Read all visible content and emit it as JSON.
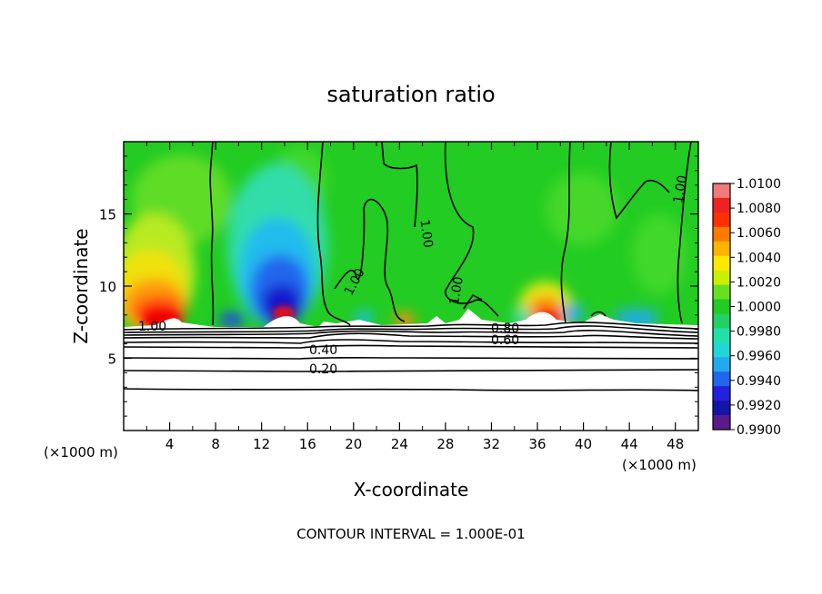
{
  "chart_data": {
    "type": "heatmap",
    "title": "saturation ratio",
    "xlabel": "X-coordinate",
    "ylabel": "Z-coordinate",
    "x_unit_left": "(×1000 m)",
    "x_unit_right": "(×1000 m)",
    "xlim": [
      0,
      50
    ],
    "ylim": [
      0,
      20
    ],
    "x_ticks": [
      4,
      8,
      12,
      16,
      20,
      24,
      28,
      32,
      36,
      40,
      44,
      48
    ],
    "y_ticks": [
      5,
      10,
      15
    ],
    "colorbar": {
      "min": 0.99,
      "max": 1.01,
      "tick_labels": [
        "1.0100",
        "1.0080",
        "1.0060",
        "1.0040",
        "1.0020",
        "1.0000",
        "0.9980",
        "0.9960",
        "0.9940",
        "0.9920",
        "0.9900"
      ]
    },
    "contour_labels": [
      {
        "text": "1.00",
        "x": 2.8,
        "z": 7.3
      },
      {
        "text": "1.00",
        "x": 20.2,
        "z": 10.5
      },
      {
        "text": "1.00",
        "x": 26.3,
        "z": 14.2
      },
      {
        "text": "1.00",
        "x": 28.8,
        "z": 9.8
      },
      {
        "text": "1.00",
        "x": 48.0,
        "z": 15.8
      },
      {
        "text": "0.40",
        "x": 17.2,
        "z": 5.6
      },
      {
        "text": "0.20",
        "x": 17.2,
        "z": 4.3
      },
      {
        "text": "0.80",
        "x": 33.5,
        "z": 7.3
      },
      {
        "text": "0.60",
        "x": 33.5,
        "z": 6.5
      }
    ],
    "grid": false,
    "legend": "colorbar-right"
  },
  "footer": "CONTOUR INTERVAL = 1.000E-01"
}
